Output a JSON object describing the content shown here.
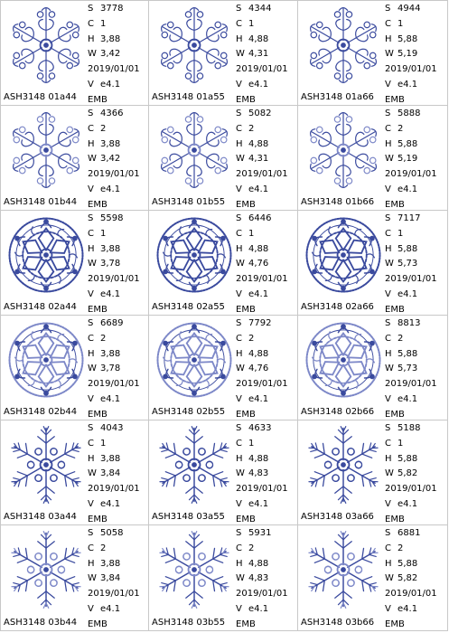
{
  "accent_color": "#3a4a9e",
  "designs": [
    {
      "name": "ASH3148 01a44",
      "stitches": "3778",
      "colors": "1",
      "height": "3,88",
      "width": "3,42",
      "date": "2019/01/01",
      "version": "e4.1",
      "format": "EMB",
      "style": 1
    },
    {
      "name": "ASH3148 01a55",
      "stitches": "4344",
      "colors": "1",
      "height": "4,88",
      "width": "4,31",
      "date": "2019/01/01",
      "version": "e4.1",
      "format": "EMB",
      "style": 1
    },
    {
      "name": "ASH3148 01a66",
      "stitches": "4944",
      "colors": "1",
      "height": "5,88",
      "width": "5,19",
      "date": "2019/01/01",
      "version": "e4.1",
      "format": "EMB",
      "style": 1
    },
    {
      "name": "ASH3148 01b44",
      "stitches": "4366",
      "colors": "2",
      "height": "3,88",
      "width": "3,42",
      "date": "2019/01/01",
      "version": "e4.1",
      "format": "EMB",
      "style": 1
    },
    {
      "name": "ASH3148 01b55",
      "stitches": "5082",
      "colors": "2",
      "height": "4,88",
      "width": "4,31",
      "date": "2019/01/01",
      "version": "e4.1",
      "format": "EMB",
      "style": 1
    },
    {
      "name": "ASH3148 01b66",
      "stitches": "5888",
      "colors": "2",
      "height": "5,88",
      "width": "5,19",
      "date": "2019/01/01",
      "version": "e4.1",
      "format": "EMB",
      "style": 1
    },
    {
      "name": "ASH3148 02a44",
      "stitches": "5598",
      "colors": "1",
      "height": "3,88",
      "width": "3,78",
      "date": "2019/01/01",
      "version": "e4.1",
      "format": "EMB",
      "style": 2
    },
    {
      "name": "ASH3148 02a55",
      "stitches": "6446",
      "colors": "1",
      "height": "4,88",
      "width": "4,76",
      "date": "2019/01/01",
      "version": "e4.1",
      "format": "EMB",
      "style": 2
    },
    {
      "name": "ASH3148 02a66",
      "stitches": "7117",
      "colors": "1",
      "height": "5,88",
      "width": "5,73",
      "date": "2019/01/01",
      "version": "e4.1",
      "format": "EMB",
      "style": 2
    },
    {
      "name": "ASH3148 02b44",
      "stitches": "6689",
      "colors": "2",
      "height": "3,88",
      "width": "3,78",
      "date": "2019/01/01",
      "version": "e4.1",
      "format": "EMB",
      "style": 2
    },
    {
      "name": "ASH3148 02b55",
      "stitches": "7792",
      "colors": "2",
      "height": "4,88",
      "width": "4,76",
      "date": "2019/01/01",
      "version": "e4.1",
      "format": "EMB",
      "style": 2
    },
    {
      "name": "ASH3148 02b66",
      "stitches": "8813",
      "colors": "2",
      "height": "5,88",
      "width": "5,73",
      "date": "2019/01/01",
      "version": "e4.1",
      "format": "EMB",
      "style": 2
    },
    {
      "name": "ASH3148 03a44",
      "stitches": "4043",
      "colors": "1",
      "height": "3,88",
      "width": "3,84",
      "date": "2019/01/01",
      "version": "e4.1",
      "format": "EMB",
      "style": 3
    },
    {
      "name": "ASH3148 03a55",
      "stitches": "4633",
      "colors": "1",
      "height": "4,88",
      "width": "4,83",
      "date": "2019/01/01",
      "version": "e4.1",
      "format": "EMB",
      "style": 3
    },
    {
      "name": "ASH3148 03a66",
      "stitches": "5188",
      "colors": "1",
      "height": "5,88",
      "width": "5,82",
      "date": "2019/01/01",
      "version": "e4.1",
      "format": "EMB",
      "style": 3
    },
    {
      "name": "ASH3148 03b44",
      "stitches": "5058",
      "colors": "2",
      "height": "3,88",
      "width": "3,84",
      "date": "2019/01/01",
      "version": "e4.1",
      "format": "EMB",
      "style": 3
    },
    {
      "name": "ASH3148 03b55",
      "stitches": "5931",
      "colors": "2",
      "height": "4,88",
      "width": "4,83",
      "date": "2019/01/01",
      "version": "e4.1",
      "format": "EMB",
      "style": 3
    },
    {
      "name": "ASH3148 03b66",
      "stitches": "6881",
      "colors": "2",
      "height": "5,88",
      "width": "5,82",
      "date": "2019/01/01",
      "version": "e4.1",
      "format": "EMB",
      "style": 3
    }
  ],
  "labels": {
    "stitches": "S",
    "colors": "C",
    "height": "H",
    "width": "W",
    "version": "V"
  }
}
